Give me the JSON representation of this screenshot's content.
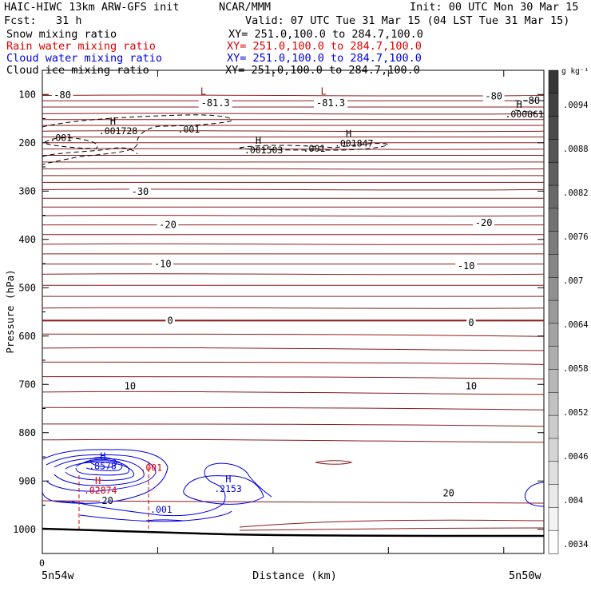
{
  "header": {
    "model": "HAIC-HIWC 13km ARW-GFS init",
    "center": "NCAR/MMM",
    "init": "Init: 00 UTC Mon 30 Mar 15",
    "fcst": "Fcst:   31 h",
    "valid": "Valid: 07 UTC Tue 31 Mar 15 (04 LST Tue 31 Mar 15)",
    "fields": [
      {
        "name": "Snow mixing ratio",
        "xy": "XY= 251.0,100.0 to 284.7,100.0",
        "color": "#000000"
      },
      {
        "name": "Rain water mixing ratio",
        "xy": "XY= 251.0,100.0 to 284.7,100.0",
        "color": "#e00000"
      },
      {
        "name": "Cloud water mixing ratio",
        "xy": "XY= 251.0,100.0 to 284.7,100.0",
        "color": "#0000e0"
      },
      {
        "name": "Cloud ice mixing ratio",
        "xy": "XY= 251.0,100.0 to 284.7,100.0",
        "color": "#000000"
      }
    ]
  },
  "chart_data": {
    "type": "cross-section contour",
    "xlabel": "Distance (km)",
    "ylabel": "Pressure (hPa)",
    "x_start_label": "0",
    "x_left_label": "5n54w",
    "x_right_label": "5n50w",
    "y_ticks": [
      100,
      200,
      300,
      400,
      500,
      600,
      700,
      800,
      900,
      1000
    ],
    "ylim": [
      50,
      1050
    ],
    "y_scale": "linear",
    "colorbar": {
      "unit": "g kg⁻¹",
      "ticks": [
        ".0094",
        ".0088",
        ".0082",
        ".0076",
        ".007",
        ".0064",
        ".0058",
        ".0052",
        ".0046",
        ".004",
        ".0034"
      ],
      "shade_levels": 21
    },
    "temperature_contour_color": "#8b1a1a",
    "temperature_labels": [
      {
        "text": "-80",
        "p": 101,
        "x": 0.04
      },
      {
        "text": "-81.3",
        "p": 118,
        "x": 0.345
      },
      {
        "text": "-81.3",
        "p": 118,
        "x": 0.575
      },
      {
        "text": "-80",
        "p": 104,
        "x": 0.9
      },
      {
        "text": "-80",
        "p": 113,
        "x": 0.975
      },
      {
        "text": "-30",
        "p": 301,
        "x": 0.195
      },
      {
        "text": "-20",
        "p": 370,
        "x": 0.25
      },
      {
        "text": "-20",
        "p": 366,
        "x": 0.88
      },
      {
        "text": "-10",
        "p": 451,
        "x": 0.24
      },
      {
        "text": "-10",
        "p": 455,
        "x": 0.845
      },
      {
        "text": "0",
        "p": 568,
        "x": 0.255
      },
      {
        "text": "0",
        "p": 572,
        "x": 0.855
      },
      {
        "text": "10",
        "p": 704,
        "x": 0.175
      },
      {
        "text": "10",
        "p": 704,
        "x": 0.855
      },
      {
        "text": "20",
        "p": 941,
        "x": 0.13
      },
      {
        "text": "20",
        "p": 925,
        "x": 0.81
      }
    ],
    "highs_lows": [
      {
        "kind": "L",
        "p": 100,
        "x": 0.315,
        "color": "#8b1a1a"
      },
      {
        "kind": "L",
        "p": 100,
        "x": 0.555,
        "color": "#8b1a1a"
      },
      {
        "kind": "H",
        "value": ".001728",
        "p": 162,
        "x": 0.135,
        "color": "#000000"
      },
      {
        "kind": "H",
        "value": ".001503",
        "p": 202,
        "x": 0.425,
        "color": "#000000"
      },
      {
        "kind": "H",
        "value": ".001847",
        "p": 188,
        "x": 0.605,
        "color": "#000000"
      },
      {
        "kind": "H",
        "value": ".000861",
        "p": 128,
        "x": 0.945,
        "color": "#000000"
      },
      {
        "kind": "H",
        "value": ".8578",
        "p": 856,
        "x": 0.115,
        "color": "#0000e0"
      },
      {
        "kind": "H",
        "value": ".2153",
        "p": 903,
        "x": 0.365,
        "color": "#0000e0"
      },
      {
        "kind": "H",
        "value": ".02874",
        "p": 906,
        "x": 0.105,
        "color": "#e00000"
      }
    ],
    "contour_labels": [
      {
        "text": ".001",
        "p": 190,
        "x": 0.015,
        "color": "#000000"
      },
      {
        "text": ".001",
        "p": 172,
        "x": 0.27,
        "color": "#000000"
      },
      {
        "text": ".001",
        "p": 212,
        "x": 0.52,
        "color": "#000000"
      },
      {
        "text": ".001",
        "p": 872,
        "x": 0.195,
        "color": "#e00000"
      },
      {
        "text": ".001",
        "p": 959,
        "x": 0.215,
        "color": "#0000e0"
      }
    ]
  }
}
